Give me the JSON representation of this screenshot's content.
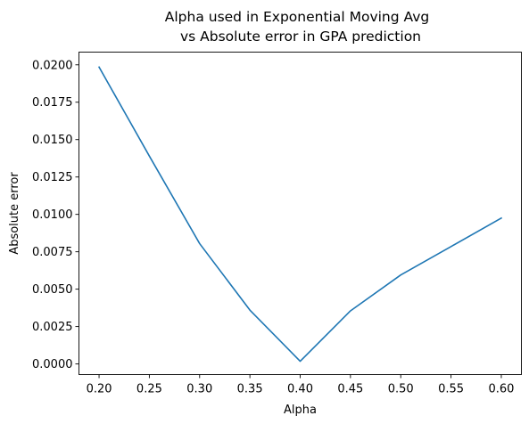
{
  "chart_data": {
    "type": "line",
    "title_lines": [
      "Alpha used in Exponential Moving Avg",
      "vs Absolute error in GPA prediction"
    ],
    "xlabel": "Alpha",
    "ylabel": "Absolute error",
    "x": [
      0.2,
      0.25,
      0.3,
      0.35,
      0.4,
      0.45,
      0.5,
      0.55,
      0.6
    ],
    "series": [
      {
        "values": [
          0.01985,
          0.0139,
          0.00805,
          0.0036,
          0.00018,
          0.00355,
          0.00595,
          0.00785,
          0.00975
        ],
        "color": "#1f77b4"
      }
    ],
    "xlim": [
      0.18,
      0.62
    ],
    "ylim": [
      -0.00071,
      0.02085
    ],
    "xticks": [
      {
        "value": 0.2,
        "label": "0.20"
      },
      {
        "value": 0.25,
        "label": "0.25"
      },
      {
        "value": 0.3,
        "label": "0.30"
      },
      {
        "value": 0.35,
        "label": "0.35"
      },
      {
        "value": 0.4,
        "label": "0.40"
      },
      {
        "value": 0.45,
        "label": "0.45"
      },
      {
        "value": 0.5,
        "label": "0.50"
      },
      {
        "value": 0.55,
        "label": "0.55"
      },
      {
        "value": 0.6,
        "label": "0.60"
      }
    ],
    "yticks": [
      {
        "value": 0.0,
        "label": "0.0000"
      },
      {
        "value": 0.0025,
        "label": "0.0025"
      },
      {
        "value": 0.005,
        "label": "0.0050"
      },
      {
        "value": 0.0075,
        "label": "0.0075"
      },
      {
        "value": 0.01,
        "label": "0.0100"
      },
      {
        "value": 0.0125,
        "label": "0.0125"
      },
      {
        "value": 0.015,
        "label": "0.0150"
      },
      {
        "value": 0.0175,
        "label": "0.0175"
      },
      {
        "value": 0.02,
        "label": "0.0200"
      }
    ],
    "grid": false,
    "legend": "none"
  }
}
